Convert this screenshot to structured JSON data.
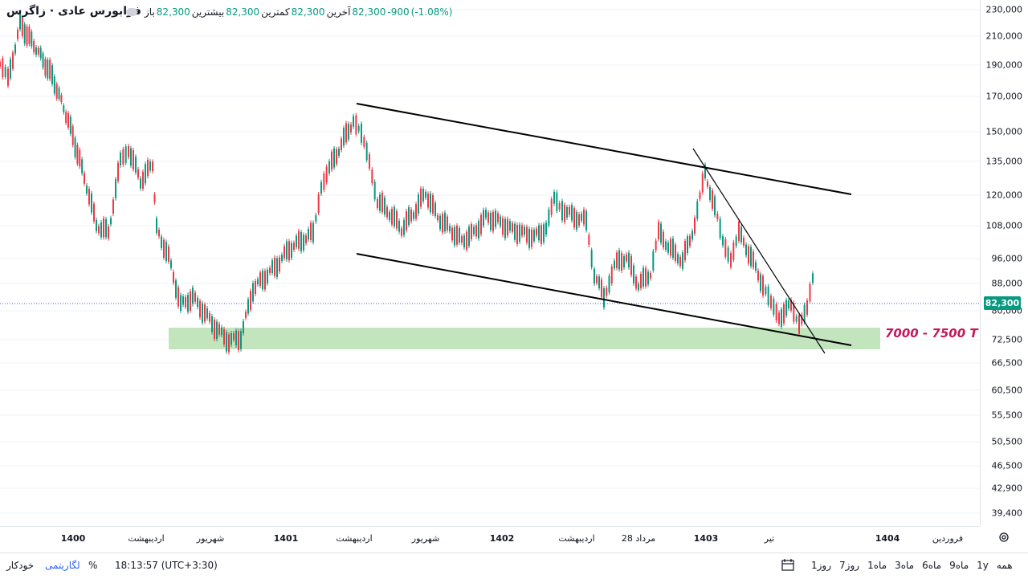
{
  "header": {
    "symbol": "فرابورس عادی · زاگرس",
    "change": "(-1.08%)",
    "change_abs": "-900",
    "last_label": "آخرین",
    "last_value": "82,300",
    "low_label": "کمترین",
    "low_value": "82,300",
    "high_label": "بیشترین",
    "high_value": "82,300",
    "open_label": "باز",
    "open_value": "82,300"
  },
  "price_axis": {
    "labels": [
      "230,000",
      "210,000",
      "190,000",
      "170,000",
      "150,000",
      "135,000",
      "120,000",
      "108,000",
      "96,000",
      "88,000",
      "80,000",
      "72,500",
      "66,500",
      "60,500",
      "55,500",
      "50,500",
      "46,500",
      "42,900",
      "39,400"
    ],
    "last_price_tag": "82,300"
  },
  "time_axis": {
    "labels": [
      {
        "text": "1400",
        "bold": true
      },
      {
        "text": "اردیبهشت",
        "bold": false
      },
      {
        "text": "شهریور",
        "bold": false
      },
      {
        "text": "1401",
        "bold": true
      },
      {
        "text": "اردیبهشت",
        "bold": false
      },
      {
        "text": "شهریور",
        "bold": false
      },
      {
        "text": "1402",
        "bold": true
      },
      {
        "text": "اردیبهشت",
        "bold": false
      },
      {
        "text": "28 مرداد",
        "bold": false
      },
      {
        "text": "1403",
        "bold": true
      },
      {
        "text": "تیر",
        "bold": false
      },
      {
        "text": "1404",
        "bold": true
      },
      {
        "text": "فروردین",
        "bold": false
      }
    ]
  },
  "annotation": {
    "zone_label": "7000 - 7500 T",
    "zone_color": "#b7e1b2",
    "zone_label_color": "#c2185b"
  },
  "bottom_bar": {
    "periods": [
      "همه",
      "1y",
      "9ماه",
      "6ماه",
      "3ماه",
      "1ماه",
      "7روز",
      "1روز"
    ],
    "clock": "18:13:57 (UTC+3:30)",
    "percent": "%",
    "log": "لگاریتمی",
    "auto": "خودکار"
  },
  "colors": {
    "up": "#089981",
    "down": "#f23645",
    "line": "#000000"
  }
}
